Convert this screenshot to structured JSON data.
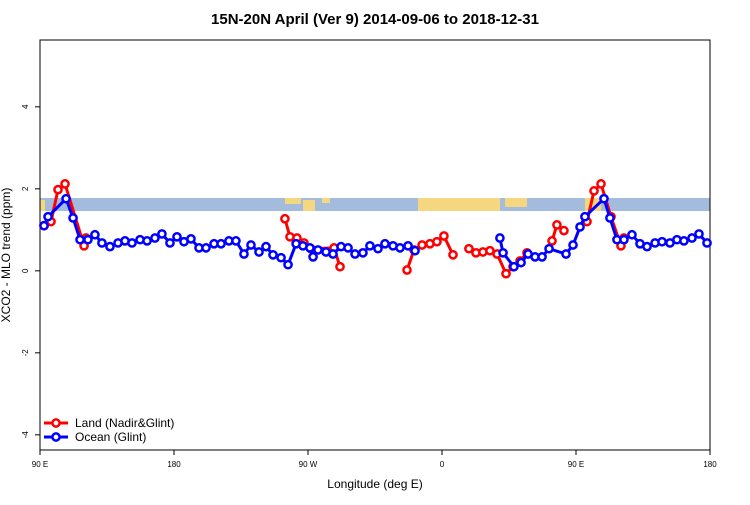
{
  "chart_data": {
    "type": "line",
    "title": "15N-20N April (Ver 9)   2014-09-06 to 2018-12-31",
    "xlabel": "Longitude (deg E)",
    "ylabel": "XCO2 - MLO trend (ppm)",
    "xlim": [
      90,
      540
    ],
    "ylim": [
      -4.37,
      5.63
    ],
    "xticks": [
      {
        "value": 90,
        "label": "90 E"
      },
      180,
      {
        "value": 270,
        "label": "90 W"
      },
      {
        "value": 360,
        "label": "0"
      },
      {
        "value": 450,
        "label": "90 E"
      },
      {
        "value": 540,
        "label": "180"
      }
    ],
    "yticks": [
      -4,
      -2,
      0,
      2,
      4
    ],
    "legend": "bottom-left",
    "series": [
      {
        "name": "Land (Nadir&Glint)",
        "color": "#ff0000",
        "x": [
          92.7,
          97.4,
          102.1,
          106.8,
          119.6,
          120.9,
          null,
          254.5,
          257.9,
          262.6,
          267.3,
          271.9,
          287.5,
          291.5,
          null,
          336.5,
          341.2,
          346.6,
          351.9,
          356.6,
          361.3,
          367.4,
          null,
          378.1,
          382.8,
          387.5,
          392.2,
          397.0,
          403.0,
          407.7,
          412.4,
          417.1,
          null,
          433.9,
          437.2,
          441.9,
          null,
          457.4,
          462.1,
          466.8,
          473.5,
          480.2,
          482.2
        ],
        "values": [
          1.1,
          1.2,
          1.98,
          2.12,
          0.61,
          0.8,
          null,
          1.27,
          0.83,
          0.8,
          0.68,
          0.54,
          0.56,
          0.1,
          null,
          0.02,
          0.51,
          0.63,
          0.66,
          0.71,
          0.85,
          0.39,
          null,
          0.54,
          0.44,
          0.46,
          0.49,
          0.41,
          -0.07,
          0.1,
          0.24,
          0.44,
          null,
          0.73,
          1.12,
          0.98,
          null,
          1.2,
          1.95,
          2.12,
          1.32,
          0.61,
          0.8
        ]
      },
      {
        "name": "Ocean (Glint)",
        "color": "#0000ff",
        "x": [
          92.7,
          95.4,
          107.5,
          112.2,
          116.9,
          122.2,
          126.9,
          131.6,
          137.0,
          142.4,
          147.1,
          151.8,
          157.2,
          161.9,
          167.2,
          171.9,
          177.3,
          182.0,
          186.7,
          191.4,
          196.8,
          201.5,
          206.9,
          211.6,
          216.9,
          221.6,
          227.0,
          231.7,
          237.1,
          241.8,
          246.5,
          251.9,
          256.6,
          262.0,
          266.6,
          271.3,
          273.4,
          276.7,
          282.1,
          286.8,
          292.2,
          296.9,
          301.6,
          306.9,
          311.6,
          317.0,
          321.7,
          327.1,
          331.8,
          337.2,
          341.9,
          null,
          398.9,
          401.0,
          408.3,
          413.1,
          417.8,
          422.5,
          427.2,
          431.9,
          443.3,
          448.0,
          452.7,
          456.0,
          468.8,
          472.8,
          477.5,
          482.2,
          487.6,
          493.0,
          497.7,
          503.1,
          507.8,
          513.1,
          517.8,
          522.5,
          527.9,
          532.6,
          538.0
        ],
        "values": [
          1.1,
          1.32,
          1.76,
          1.29,
          0.76,
          0.76,
          0.88,
          0.68,
          0.59,
          0.68,
          0.73,
          0.68,
          0.76,
          0.73,
          0.8,
          0.9,
          0.68,
          0.83,
          0.71,
          0.78,
          0.56,
          0.56,
          0.66,
          0.66,
          0.73,
          0.73,
          0.41,
          0.63,
          0.46,
          0.59,
          0.39,
          0.32,
          0.15,
          0.66,
          0.61,
          0.56,
          0.34,
          0.51,
          0.46,
          0.41,
          0.59,
          0.56,
          0.41,
          0.44,
          0.61,
          0.54,
          0.66,
          0.61,
          0.56,
          0.61,
          0.49,
          null,
          0.8,
          0.44,
          0.1,
          0.2,
          0.41,
          0.34,
          0.34,
          0.54,
          0.41,
          0.63,
          1.07,
          1.32,
          1.76,
          1.29,
          0.76,
          0.76,
          0.88,
          0.66,
          0.59,
          0.68,
          0.71,
          0.68,
          0.76,
          0.73,
          0.8,
          0.9,
          0.68
        ]
      }
    ]
  }
}
